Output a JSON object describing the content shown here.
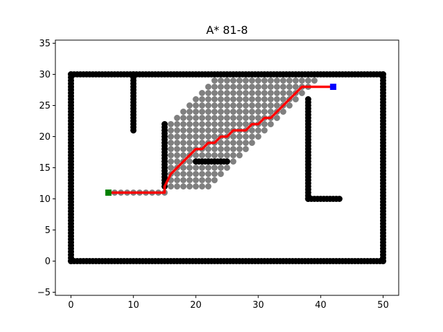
{
  "chart_data": {
    "type": "scatter",
    "title": "A* 81-8",
    "xlabel": "",
    "ylabel": "",
    "xlim": [
      -2.5,
      52.5
    ],
    "ylim": [
      -5.5,
      35.5
    ],
    "x_ticks": [
      0,
      10,
      20,
      30,
      40,
      50
    ],
    "y_ticks": [
      -5,
      0,
      5,
      10,
      15,
      20,
      25,
      30,
      35
    ],
    "grid": false,
    "colors": {
      "obstacle": "#000000",
      "explored": "#808080",
      "path": "#ff0000",
      "start": "#008000",
      "goal": "#0000ff"
    },
    "obstacle_segments": [
      {
        "name": "boundary-bottom",
        "from": [
          0,
          0
        ],
        "to": [
          50,
          0
        ]
      },
      {
        "name": "boundary-top",
        "from": [
          0,
          30
        ],
        "to": [
          50,
          30
        ]
      },
      {
        "name": "boundary-left",
        "from": [
          0,
          0
        ],
        "to": [
          0,
          30
        ]
      },
      {
        "name": "boundary-right",
        "from": [
          50,
          0
        ],
        "to": [
          50,
          30
        ]
      },
      {
        "name": "wall-x10",
        "from": [
          10,
          21
        ],
        "to": [
          10,
          30
        ]
      },
      {
        "name": "wall-x15",
        "from": [
          15,
          12
        ],
        "to": [
          15,
          22
        ]
      },
      {
        "name": "wall-x38",
        "from": [
          38,
          10
        ],
        "to": [
          38,
          26
        ]
      },
      {
        "name": "wall-y10",
        "from": [
          38,
          10
        ],
        "to": [
          43,
          10
        ]
      },
      {
        "name": "wall-y16",
        "from": [
          20,
          16
        ],
        "to": [
          25,
          16
        ]
      }
    ],
    "explored_region": {
      "lower_edge_slope": 1.0,
      "lower_edge_intercept": -6,
      "upper_edge_slope": 1.0,
      "upper_edge_intercept": 10,
      "x_range": [
        15,
        43
      ],
      "y_range": [
        12,
        29
      ]
    },
    "explored_tail": {
      "y": 11,
      "x_range": [
        7,
        15
      ]
    },
    "path": [
      [
        6,
        11
      ],
      [
        8,
        11
      ],
      [
        10,
        11
      ],
      [
        12,
        11
      ],
      [
        14,
        11
      ],
      [
        15,
        11
      ],
      [
        15,
        12
      ],
      [
        15.5,
        13
      ],
      [
        16,
        14
      ],
      [
        17,
        15
      ],
      [
        18,
        16
      ],
      [
        19,
        17
      ],
      [
        20,
        18
      ],
      [
        21,
        18
      ],
      [
        22,
        19
      ],
      [
        23,
        19
      ],
      [
        24,
        20
      ],
      [
        25,
        20
      ],
      [
        26,
        21
      ],
      [
        27,
        21
      ],
      [
        28,
        21
      ],
      [
        29,
        22
      ],
      [
        30,
        22
      ],
      [
        31,
        23
      ],
      [
        32,
        23
      ],
      [
        33,
        24
      ],
      [
        34,
        25
      ],
      [
        35,
        26
      ],
      [
        36,
        27
      ],
      [
        37,
        28
      ],
      [
        38,
        28
      ],
      [
        40,
        28
      ],
      [
        42,
        28
      ]
    ],
    "start": [
      6,
      11
    ],
    "goal": [
      42,
      28
    ]
  }
}
